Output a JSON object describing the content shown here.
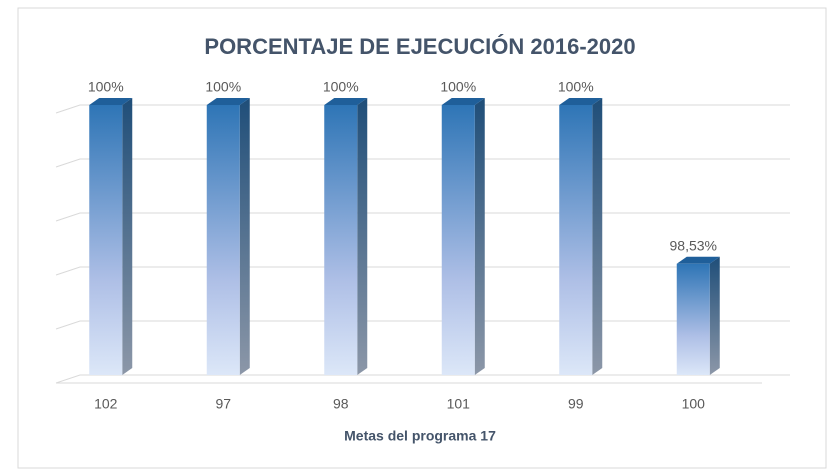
{
  "chart_data": {
    "type": "bar3d",
    "title": "PORCENTAJE DE EJECUCIÓN 2016-2020",
    "x_label": "Metas del programa  17",
    "categories": [
      "102",
      "97",
      "98",
      "101",
      "99",
      "100"
    ],
    "values": [
      100,
      100,
      100,
      100,
      100,
      98.53
    ],
    "value_labels": [
      "100%",
      "100%",
      "100%",
      "100%",
      "100%",
      "98,53%"
    ],
    "color": "#2e75b6",
    "ylim": [
      97.5,
      100
    ],
    "yticks": [
      97.5,
      98,
      98.5,
      99,
      99.5,
      100
    ],
    "grid": true
  }
}
